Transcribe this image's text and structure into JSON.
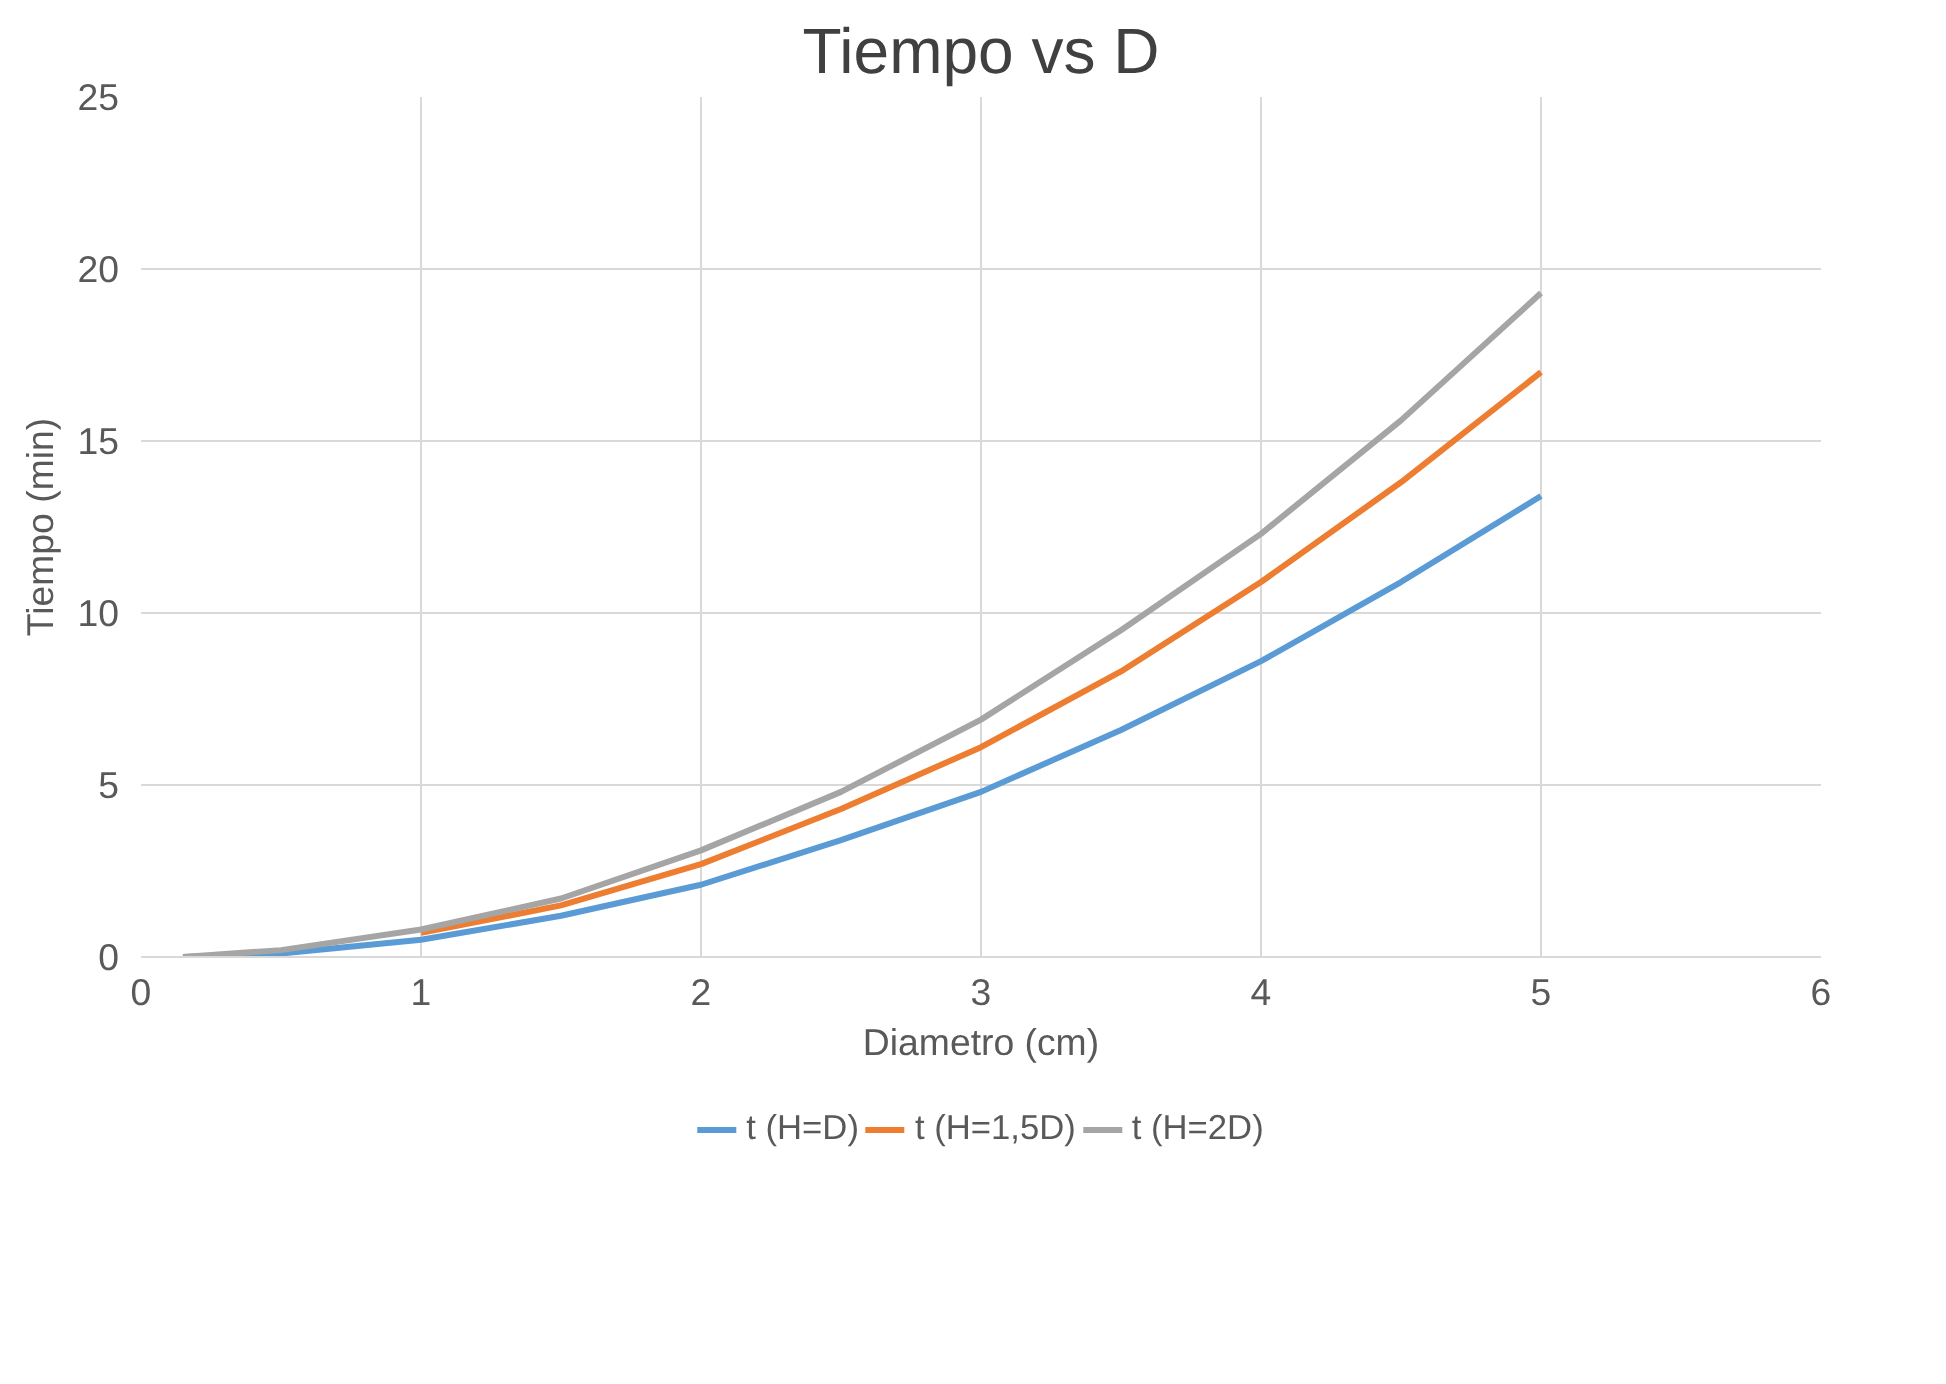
{
  "chart_data": {
    "type": "line",
    "title": "Tiempo vs D",
    "xlabel": "Diametro (cm)",
    "ylabel": "Tiempo (min)",
    "x": [
      0.15,
      0.5,
      1,
      1.5,
      2,
      2.5,
      3,
      3.5,
      4,
      4.5,
      5
    ],
    "series": [
      {
        "name": "t (H=D)",
        "color": "#5b9bd5",
        "values": [
          0.0,
          0.1,
          0.5,
          1.2,
          2.1,
          3.4,
          4.8,
          6.6,
          8.6,
          10.9,
          13.4
        ]
      },
      {
        "name": "t (H=1,5D)",
        "color": "#ed7d31",
        "values": [
          null,
          null,
          0.7,
          1.5,
          2.7,
          4.3,
          6.1,
          8.3,
          10.9,
          13.8,
          17.0
        ]
      },
      {
        "name": "t (H=2D)",
        "color": "#a5a5a5",
        "values": [
          0.0,
          0.2,
          0.8,
          1.7,
          3.1,
          4.8,
          6.9,
          9.5,
          12.3,
          15.6,
          19.3
        ]
      }
    ],
    "xlim": [
      0,
      6
    ],
    "xticks": [
      0,
      1,
      2,
      3,
      4,
      5,
      6
    ],
    "ylim": [
      0,
      25
    ],
    "yticks": [
      0,
      5,
      10,
      15,
      20,
      25
    ],
    "grid": true,
    "legend": "bottom",
    "marker": "none",
    "line_style": "solid"
  }
}
